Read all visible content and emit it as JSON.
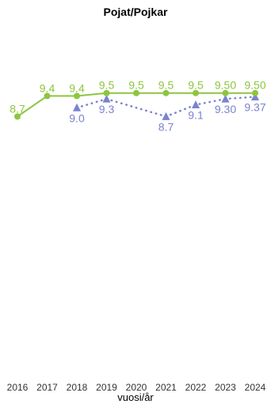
{
  "chart_data": {
    "type": "line",
    "title": "Pojat/Pojkar",
    "xlabel": "vuosi/år",
    "ylabel": "",
    "x": [
      "2016",
      "2017",
      "2018",
      "2019",
      "2020",
      "2021",
      "2022",
      "2023",
      "2024"
    ],
    "ylim": [
      0,
      12
    ],
    "grid": false,
    "series": [
      {
        "color": "#8cc63f",
        "marker": "circle",
        "line_style": "solid",
        "values": [
          8.7,
          9.4,
          9.4,
          9.5,
          9.5,
          9.5,
          9.5,
          9.5,
          9.5
        ],
        "labels": [
          "8.7",
          "9.4",
          "9.4",
          "9.5",
          "9.5",
          "9.5",
          "9.5",
          "9.50",
          "9.50"
        ]
      },
      {
        "color": "#7b83cf",
        "marker": "triangle",
        "line_style": "dotted",
        "values": [
          null,
          null,
          9.0,
          9.3,
          null,
          8.7,
          9.1,
          9.3,
          9.37
        ],
        "labels": [
          null,
          null,
          "9.0",
          "9.3",
          null,
          "8.7",
          "9.1",
          "9.30",
          "9.37"
        ]
      }
    ]
  }
}
